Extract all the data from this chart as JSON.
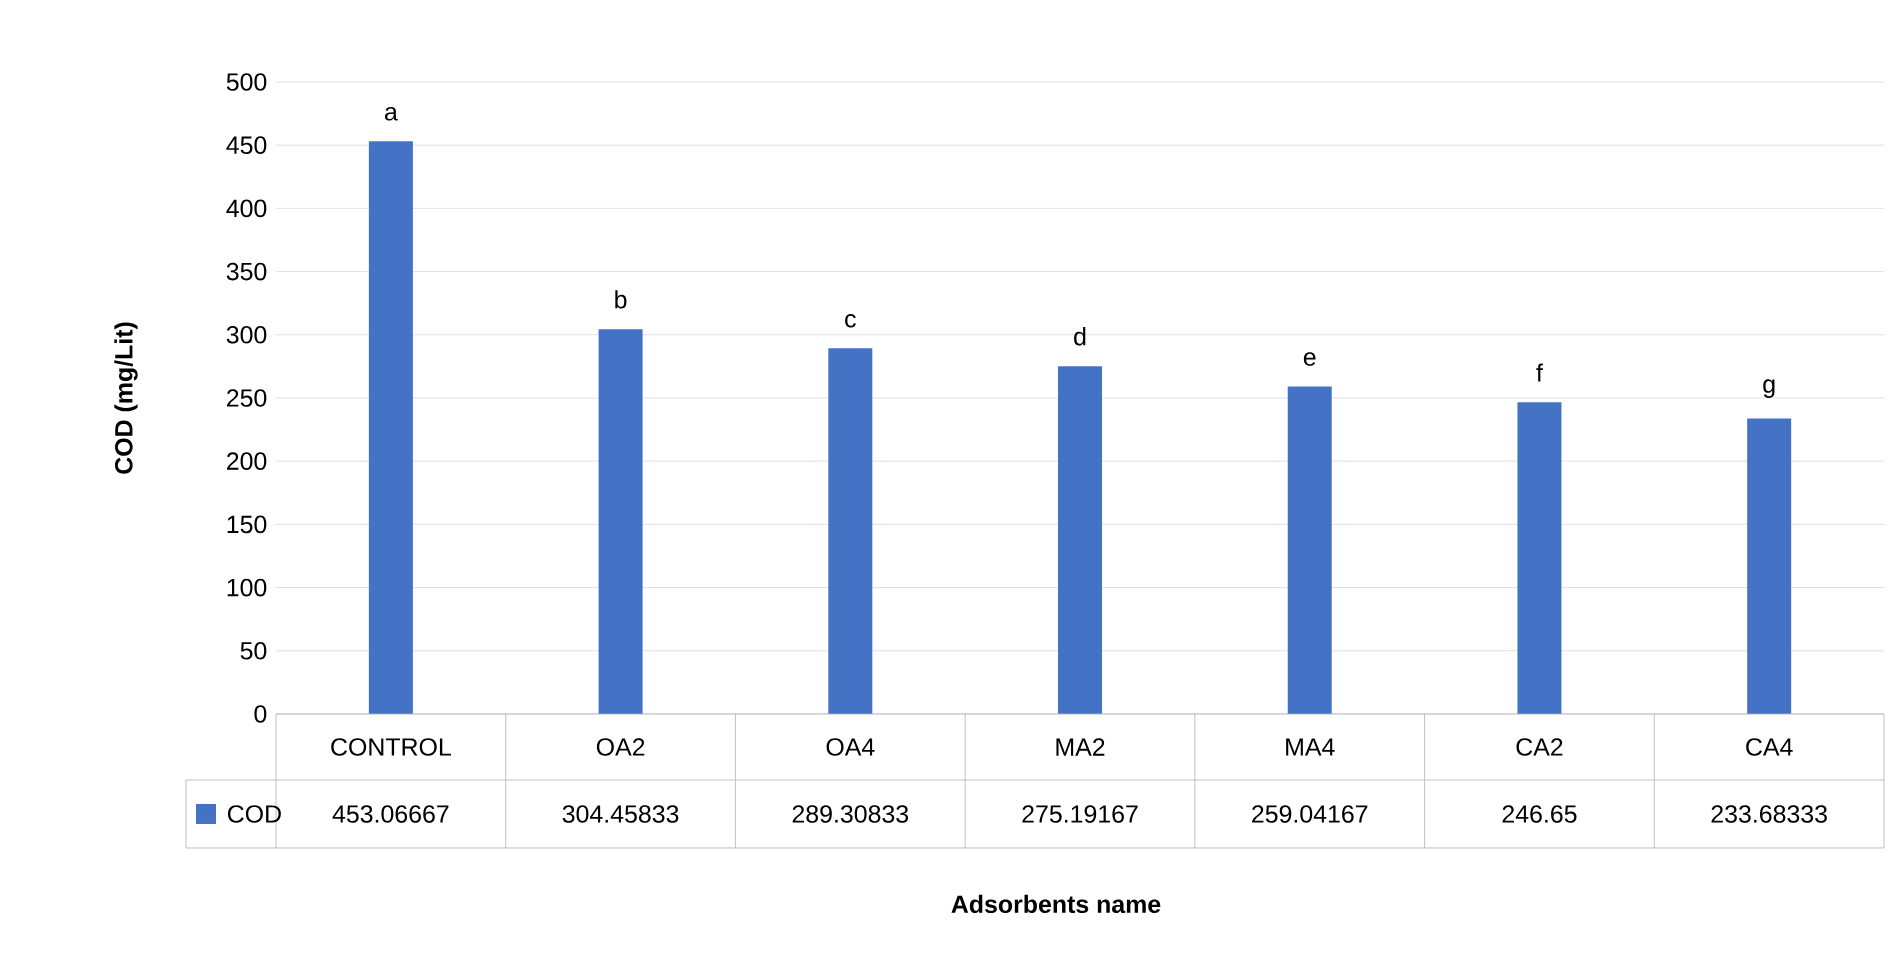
{
  "chart_data": {
    "type": "bar",
    "ylabel": "COD (mg/Lit)",
    "categories": [
      "CONTROL",
      "OA2",
      "OA4",
      "MA2",
      "MA4",
      "CA2",
      "CA4"
    ],
    "series": [
      {
        "name": "COD",
        "color": "#4472c4",
        "values": [
          453.06667,
          304.45833,
          289.30833,
          275.19167,
          259.04167,
          246.65,
          233.68333
        ]
      }
    ],
    "ylim": [
      0,
      500
    ],
    "yticks": [
      0,
      50,
      100,
      150,
      200,
      250,
      300,
      350,
      400,
      450,
      500
    ],
    "grid": "y",
    "data_labels": true,
    "annotations": [
      {
        "text": "a",
        "x": "CONTROL",
        "y": 453.06667
      },
      {
        "text": "b",
        "x": "OA2",
        "y": 304.45833
      },
      {
        "text": "c",
        "x": "OA4",
        "y": 289.30833
      },
      {
        "text": "d",
        "x": "MA2",
        "y": 275.19167
      },
      {
        "text": "e",
        "x": "MA4",
        "y": 259.04167
      },
      {
        "text": "f",
        "x": "CA2",
        "y": 246.65
      },
      {
        "text": "g",
        "x": "CA4",
        "y": 233.68333
      },
      "Adsorbents name"
    ]
  }
}
